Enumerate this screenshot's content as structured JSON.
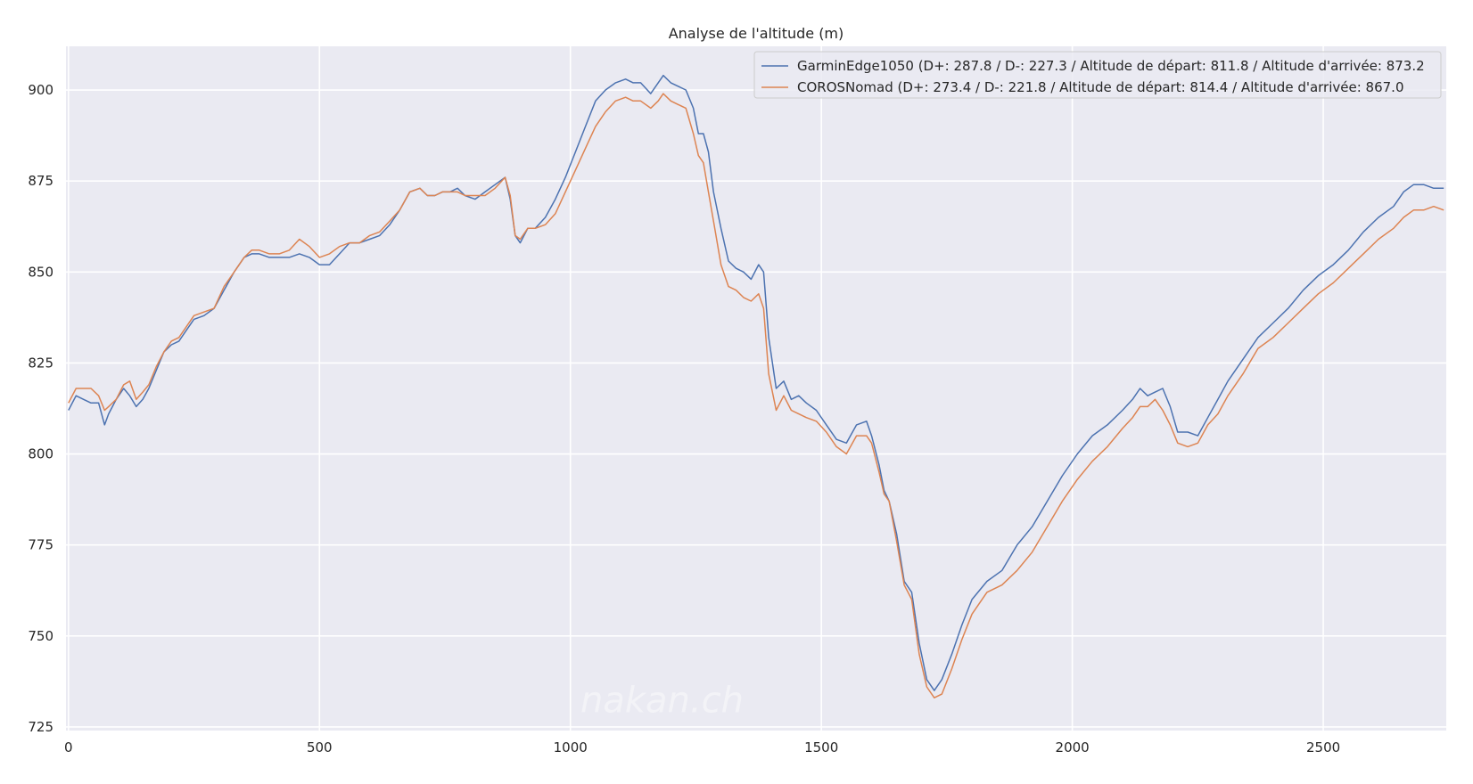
{
  "chart_data": {
    "type": "line",
    "title": "Analyse de l'altitude (m)",
    "xlabel": "",
    "ylabel": "",
    "xlim": [
      -5,
      2745
    ],
    "ylim": [
      724,
      912
    ],
    "xticks": [
      0,
      500,
      1000,
      1500,
      2000,
      2500
    ],
    "xtick_labels": [
      "0",
      "500",
      "1000",
      "1500",
      "2000",
      "2500"
    ],
    "yticks": [
      725,
      750,
      775,
      800,
      825,
      850,
      875,
      900
    ],
    "ytick_labels": [
      "725",
      "750",
      "775",
      "800",
      "825",
      "850",
      "875",
      "900"
    ],
    "grid": true,
    "legend_position": "top-right",
    "watermark": "nakan.ch",
    "colors": {
      "plot_bg": "#EAEAF2",
      "grid": "#FFFFFF",
      "series1": "#4C72B0",
      "series2": "#DD8452"
    },
    "series": [
      {
        "name": "GarminEdge1050 (D+: 287.8 / D-: 227.3 / Altitude de départ: 811.8 / Altitude d'arrivée: 873.2",
        "color": "#4C72B0",
        "x": [
          0,
          15,
          30,
          45,
          60,
          72,
          80,
          95,
          110,
          122,
          135,
          148,
          160,
          175,
          190,
          205,
          220,
          235,
          250,
          270,
          290,
          310,
          330,
          350,
          365,
          380,
          400,
          420,
          440,
          460,
          480,
          500,
          520,
          540,
          560,
          580,
          600,
          620,
          640,
          660,
          680,
          700,
          715,
          730,
          745,
          760,
          775,
          790,
          810,
          830,
          850,
          870,
          880,
          890,
          900,
          915,
          930,
          950,
          970,
          990,
          1010,
          1030,
          1050,
          1070,
          1090,
          1110,
          1125,
          1140,
          1160,
          1175,
          1185,
          1200,
          1215,
          1230,
          1245,
          1255,
          1265,
          1275,
          1285,
          1300,
          1315,
          1330,
          1345,
          1360,
          1375,
          1385,
          1395,
          1410,
          1425,
          1440,
          1455,
          1470,
          1490,
          1510,
          1530,
          1550,
          1570,
          1590,
          1600,
          1615,
          1625,
          1635,
          1650,
          1665,
          1680,
          1695,
          1710,
          1725,
          1740,
          1760,
          1780,
          1800,
          1830,
          1860,
          1890,
          1920,
          1950,
          1980,
          2010,
          2040,
          2070,
          2100,
          2120,
          2135,
          2150,
          2165,
          2180,
          2195,
          2210,
          2230,
          2250,
          2270,
          2290,
          2310,
          2340,
          2370,
          2400,
          2430,
          2460,
          2490,
          2520,
          2550,
          2580,
          2610,
          2640,
          2660,
          2680,
          2700,
          2720,
          2740
        ],
        "y": [
          812,
          816,
          815,
          814,
          814,
          808,
          811,
          815,
          818,
          816,
          813,
          815,
          818,
          823,
          828,
          830,
          831,
          834,
          837,
          838,
          840,
          845,
          850,
          854,
          855,
          855,
          854,
          854,
          854,
          855,
          854,
          852,
          852,
          855,
          858,
          858,
          859,
          860,
          863,
          867,
          872,
          873,
          871,
          871,
          872,
          872,
          873,
          871,
          870,
          872,
          874,
          876,
          870,
          860,
          858,
          862,
          862,
          865,
          870,
          876,
          883,
          890,
          897,
          900,
          902,
          903,
          902,
          902,
          899,
          902,
          904,
          902,
          901,
          900,
          895,
          888,
          888,
          883,
          872,
          862,
          853,
          851,
          850,
          848,
          852,
          850,
          832,
          818,
          820,
          815,
          816,
          814,
          812,
          808,
          804,
          803,
          808,
          809,
          805,
          797,
          790,
          787,
          778,
          765,
          762,
          748,
          738,
          735,
          738,
          745,
          753,
          760,
          765,
          768,
          775,
          780,
          787,
          794,
          800,
          805,
          808,
          812,
          815,
          818,
          816,
          817,
          818,
          813,
          806,
          806,
          805,
          810,
          815,
          820,
          826,
          832,
          836,
          840,
          845,
          849,
          852,
          856,
          861,
          865,
          868,
          872,
          874,
          874,
          873,
          873
        ]
      },
      {
        "name": "COROSNomad (D+: 273.4 / D-: 221.8 / Altitude de départ: 814.4 / Altitude d'arrivée: 867.0",
        "color": "#DD8452",
        "x": [
          0,
          15,
          30,
          45,
          60,
          72,
          80,
          95,
          110,
          122,
          135,
          148,
          160,
          175,
          190,
          205,
          220,
          235,
          250,
          270,
          290,
          310,
          330,
          350,
          365,
          380,
          400,
          420,
          440,
          460,
          480,
          500,
          520,
          540,
          560,
          580,
          600,
          620,
          640,
          660,
          680,
          700,
          715,
          730,
          745,
          760,
          775,
          790,
          810,
          830,
          850,
          870,
          880,
          890,
          900,
          915,
          930,
          950,
          970,
          990,
          1010,
          1030,
          1050,
          1070,
          1090,
          1110,
          1125,
          1140,
          1160,
          1175,
          1185,
          1200,
          1215,
          1230,
          1245,
          1255,
          1265,
          1275,
          1285,
          1300,
          1315,
          1330,
          1345,
          1360,
          1375,
          1385,
          1395,
          1410,
          1425,
          1440,
          1455,
          1470,
          1490,
          1510,
          1530,
          1550,
          1570,
          1590,
          1600,
          1615,
          1625,
          1635,
          1650,
          1665,
          1680,
          1695,
          1710,
          1725,
          1740,
          1760,
          1780,
          1800,
          1830,
          1860,
          1890,
          1920,
          1950,
          1980,
          2010,
          2040,
          2070,
          2100,
          2120,
          2135,
          2150,
          2165,
          2180,
          2195,
          2210,
          2230,
          2250,
          2270,
          2290,
          2310,
          2340,
          2370,
          2400,
          2430,
          2460,
          2490,
          2520,
          2550,
          2580,
          2610,
          2640,
          2660,
          2680,
          2700,
          2720,
          2740
        ],
        "y": [
          814,
          818,
          818,
          818,
          816,
          812,
          813,
          815,
          819,
          820,
          815,
          817,
          819,
          824,
          828,
          831,
          832,
          835,
          838,
          839,
          840,
          846,
          850,
          854,
          856,
          856,
          855,
          855,
          856,
          859,
          857,
          854,
          855,
          857,
          858,
          858,
          860,
          861,
          864,
          867,
          872,
          873,
          871,
          871,
          872,
          872,
          872,
          871,
          871,
          871,
          873,
          876,
          871,
          860,
          859,
          862,
          862,
          863,
          866,
          872,
          878,
          884,
          890,
          894,
          897,
          898,
          897,
          897,
          895,
          897,
          899,
          897,
          896,
          895,
          888,
          882,
          880,
          872,
          864,
          852,
          846,
          845,
          843,
          842,
          844,
          840,
          822,
          812,
          816,
          812,
          811,
          810,
          809,
          806,
          802,
          800,
          805,
          805,
          803,
          795,
          789,
          787,
          776,
          764,
          760,
          745,
          736,
          733,
          734,
          741,
          749,
          756,
          762,
          764,
          768,
          773,
          780,
          787,
          793,
          798,
          802,
          807,
          810,
          813,
          813,
          815,
          812,
          808,
          803,
          802,
          803,
          808,
          811,
          816,
          822,
          829,
          832,
          836,
          840,
          844,
          847,
          851,
          855,
          859,
          862,
          865,
          867,
          867,
          868,
          867
        ]
      }
    ]
  }
}
